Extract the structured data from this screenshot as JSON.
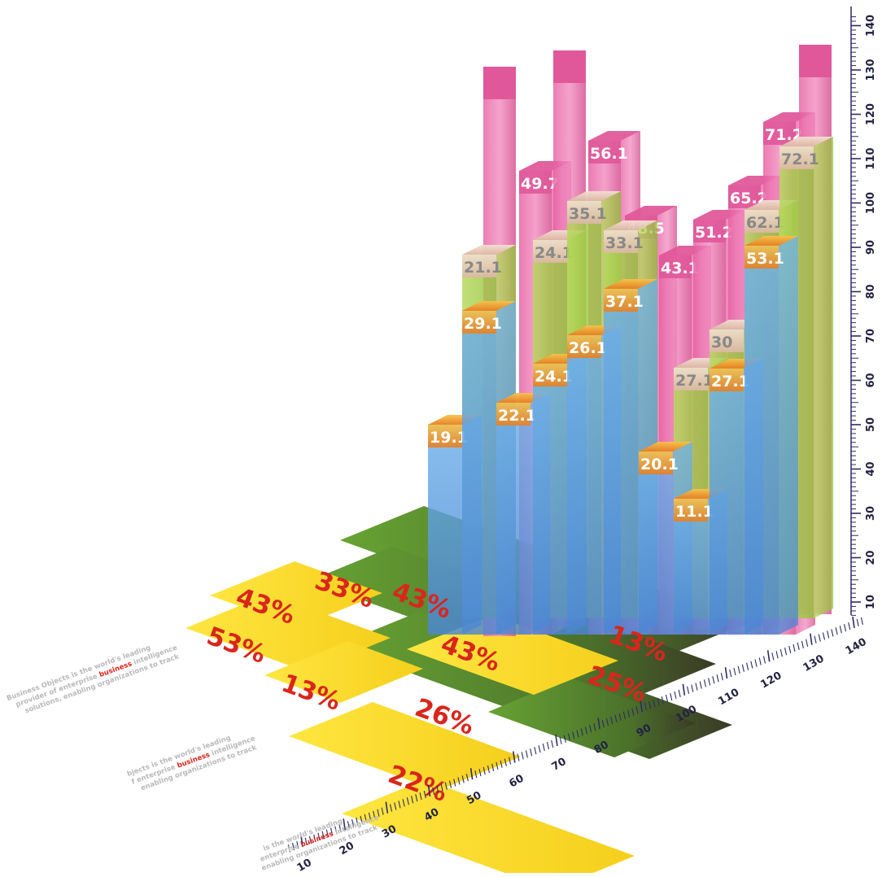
{
  "chart_data": {
    "type": "bar",
    "three_d": true,
    "stacked_overlapping": true,
    "vertical_axis": {
      "ticks": [
        10,
        20,
        30,
        40,
        50,
        60,
        70,
        80,
        90,
        100,
        110,
        120,
        130,
        140
      ]
    },
    "depth_axis": {
      "ticks": [
        10,
        20,
        30,
        40,
        50,
        60,
        70,
        80,
        90,
        100,
        110,
        120,
        130,
        140
      ]
    },
    "series": [
      {
        "color": "#5b9ee0",
        "values": [
          19.1,
          29.1,
          22.1,
          24.1,
          26.1,
          37.1,
          20.1,
          11.1,
          27.1,
          53.1
        ]
      },
      {
        "color": "#a6cf45",
        "values": [
          21.1,
          24.1,
          35.1,
          33.1,
          27.1,
          30,
          62.1,
          72.1
        ]
      },
      {
        "color": "#e0589a",
        "values": [
          49.7,
          56.1,
          48.5,
          43.1,
          51.2,
          65.2,
          71.2
        ]
      }
    ],
    "floor_percentages": [
      "43%",
      "33%",
      "53%",
      "43%",
      "13%",
      "43%",
      "13%",
      "26%",
      "25%",
      "22%"
    ],
    "colors": {
      "blue": "#5b9ee0",
      "green": "#a6cf45",
      "pink": "#e0589a",
      "orange_cap": "#f0a030",
      "floor_yellow": "#ffdd33",
      "floor_green": "#5c8f2e",
      "percent_red": "#d9261c",
      "axis": "#2c2c66"
    }
  },
  "blurbs": [
    [
      "Business Objects is the world's leading",
      "provider of enterprise ",
      "business",
      " intelligence",
      "solutions, enabling organizations to track"
    ],
    [
      "bjects is the world's leading",
      "f enterprise ",
      "business",
      " intelligence",
      "enabling organizations to track"
    ],
    [
      "is the world's leading",
      "enterprise ",
      "business",
      " intelligence",
      "enabling organizations to track"
    ]
  ]
}
